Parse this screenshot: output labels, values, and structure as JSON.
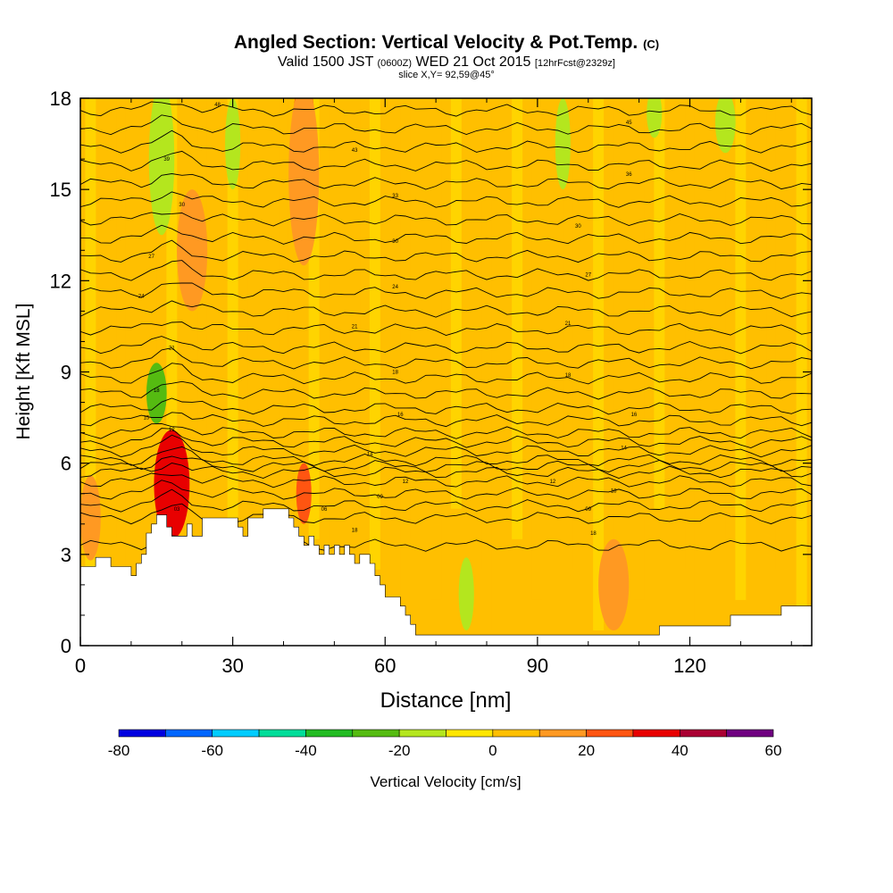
{
  "chart_data": {
    "type": "heatmap",
    "title": "Angled Section: Vertical Velocity & Pot.Temp.",
    "title_suffix": "(C)",
    "subtitle": {
      "valid": "Valid 1500 JST",
      "zulu": "(0600Z)",
      "date": "WED 21 Oct 2015",
      "forecast": "[12hrFcst@2329z]"
    },
    "slice_label": "slice X,Y= 92,59@45°",
    "xlabel": "Distance [nm]",
    "ylabel": "Height [Kft MSL]",
    "xlim": [
      0,
      144
    ],
    "ylim": [
      0,
      18
    ],
    "x_ticks": [
      "0",
      "30",
      "60",
      "90",
      "120"
    ],
    "x_tick_values": [
      0,
      30,
      60,
      90,
      120
    ],
    "y_ticks": [
      "0",
      "3",
      "6",
      "9",
      "12",
      "15",
      "18"
    ],
    "y_tick_values": [
      0,
      3,
      6,
      9,
      12,
      15,
      18
    ],
    "colorbar": {
      "label": "Vertical Velocity [cm/s]",
      "tick_labels": [
        "-80",
        "-60",
        "-40",
        "-20",
        "0",
        "20",
        "40",
        "60"
      ],
      "tick_values": [
        -80,
        -60,
        -40,
        -20,
        0,
        20,
        40,
        60
      ],
      "bins": [
        -80,
        -70,
        -60,
        -50,
        -40,
        -30,
        -20,
        -10,
        0,
        10,
        20,
        30,
        40,
        50,
        60
      ],
      "colors": [
        "#0000e0",
        "#0066ff",
        "#00ccff",
        "#00dd99",
        "#22bb22",
        "#55bb11",
        "#b4e61e",
        "#ffe600",
        "#ffbf00",
        "#ff9922",
        "#ff5511",
        "#e80000",
        "#aa0033",
        "#6f0080"
      ]
    },
    "background_value_cms": 0,
    "terrain_kft": [
      [
        0,
        2.6
      ],
      [
        3,
        2.6
      ],
      [
        3,
        2.9
      ],
      [
        6,
        2.9
      ],
      [
        6,
        2.6
      ],
      [
        10,
        2.6
      ],
      [
        10,
        2.3
      ],
      [
        11,
        2.3
      ],
      [
        11,
        2.7
      ],
      [
        12,
        2.7
      ],
      [
        12,
        3
      ],
      [
        13,
        3
      ],
      [
        13,
        3.7
      ],
      [
        14,
        3.7
      ],
      [
        14,
        4
      ],
      [
        15,
        4
      ],
      [
        15,
        4.3
      ],
      [
        17,
        4.3
      ],
      [
        17,
        3.9
      ],
      [
        18,
        3.9
      ],
      [
        18,
        3.6
      ],
      [
        21,
        3.6
      ],
      [
        21,
        4
      ],
      [
        22,
        4
      ],
      [
        22,
        3.6
      ],
      [
        24,
        3.6
      ],
      [
        24,
        4.2
      ],
      [
        31,
        4.2
      ],
      [
        31,
        3.9
      ],
      [
        32,
        3.9
      ],
      [
        32,
        3.6
      ],
      [
        33,
        3.6
      ],
      [
        33,
        4.2
      ],
      [
        36,
        4.2
      ],
      [
        36,
        4.5
      ],
      [
        41,
        4.5
      ],
      [
        41,
        4.2
      ],
      [
        42,
        4.2
      ],
      [
        42,
        3.9
      ],
      [
        43,
        3.9
      ],
      [
        43,
        3.6
      ],
      [
        44,
        3.6
      ],
      [
        44,
        3.3
      ],
      [
        45,
        3.3
      ],
      [
        45,
        3.6
      ],
      [
        46,
        3.6
      ],
      [
        46,
        3.3
      ],
      [
        47,
        3.3
      ],
      [
        47,
        3
      ],
      [
        48,
        3
      ],
      [
        48,
        3.3
      ],
      [
        49,
        3.3
      ],
      [
        49,
        3
      ],
      [
        50,
        3
      ],
      [
        50,
        3.3
      ],
      [
        51,
        3.3
      ],
      [
        51,
        3
      ],
      [
        52,
        3
      ],
      [
        52,
        3.3
      ],
      [
        53,
        3.3
      ],
      [
        53,
        3
      ],
      [
        54,
        3
      ],
      [
        54,
        2.7
      ],
      [
        55,
        2.7
      ],
      [
        55,
        3
      ],
      [
        57,
        3
      ],
      [
        57,
        2.7
      ],
      [
        58,
        2.7
      ],
      [
        58,
        2.3
      ],
      [
        59,
        2.3
      ],
      [
        59,
        2
      ],
      [
        60,
        2
      ],
      [
        60,
        1.6
      ],
      [
        63,
        1.6
      ],
      [
        63,
        1.3
      ],
      [
        64,
        1.3
      ],
      [
        64,
        1
      ],
      [
        65,
        1
      ],
      [
        65,
        0.7
      ],
      [
        66,
        0.7
      ],
      [
        66,
        0.35
      ],
      [
        114,
        0.35
      ],
      [
        114,
        0.65
      ],
      [
        122,
        0.65
      ],
      [
        122,
        0.65
      ],
      [
        128,
        0.65
      ],
      [
        128,
        1
      ],
      [
        138,
        1
      ],
      [
        138,
        1.3
      ],
      [
        144,
        1.3
      ]
    ],
    "velocity_blobs": [
      {
        "x": 17,
        "x_halfwidth": 2.2,
        "y": 5.1,
        "y_halfheight": 1.2,
        "value_cms": 50
      },
      {
        "x": 18,
        "x_halfwidth": 3.5,
        "y": 5.3,
        "y_halfheight": 1.8,
        "value_cms": 35
      },
      {
        "x": 16,
        "x_halfwidth": 2,
        "y": 16.2,
        "y_halfheight": 1.8,
        "value_cms": -35
      },
      {
        "x": 16,
        "x_halfwidth": 2.5,
        "y": 16,
        "y_halfheight": 2.5,
        "value_cms": -20
      },
      {
        "x": 15,
        "x_halfwidth": 2,
        "y": 8.3,
        "y_halfheight": 1,
        "value_cms": -25
      },
      {
        "x": 44,
        "x_halfwidth": 2.2,
        "y": 17,
        "y_halfheight": 1.6,
        "value_cms": 30
      },
      {
        "x": 44,
        "x_halfwidth": 3,
        "y": 15.5,
        "y_halfheight": 3,
        "value_cms": 15
      },
      {
        "x": 30,
        "x_halfwidth": 1.5,
        "y": 16.5,
        "y_halfheight": 1.5,
        "value_cms": -20
      },
      {
        "x": 113,
        "x_halfwidth": 1.5,
        "y": 17.5,
        "y_halfheight": 0.8,
        "value_cms": -15
      },
      {
        "x": 127,
        "x_halfwidth": 2,
        "y": 17.2,
        "y_halfheight": 1,
        "value_cms": -12
      },
      {
        "x": 95,
        "x_halfwidth": 1.5,
        "y": 16.5,
        "y_halfheight": 1.5,
        "value_cms": -12
      },
      {
        "x": 76,
        "x_halfwidth": 1.5,
        "y": 1.7,
        "y_halfheight": 1.2,
        "value_cms": -12
      },
      {
        "x": 22,
        "x_halfwidth": 3,
        "y": 13,
        "y_halfheight": 2,
        "value_cms": 15
      },
      {
        "x": 44,
        "x_halfwidth": 1.5,
        "y": 5,
        "y_halfheight": 1,
        "value_cms": 25
      },
      {
        "x": 2,
        "x_halfwidth": 2,
        "y": 4.2,
        "y_halfheight": 1.4,
        "value_cms": 15
      },
      {
        "x": 105,
        "x_halfwidth": 3,
        "y": 2,
        "y_halfheight": 1.5,
        "value_cms": 10
      }
    ],
    "theta_contours_kft": [
      3.3,
      4.2,
      4.6,
      5.0,
      5.4,
      5.7,
      5.9,
      6.1,
      6.4,
      6.7,
      7.0,
      7.4,
      7.8,
      8.3,
      8.8,
      9.3,
      9.8,
      10.4,
      11.0,
      11.6,
      12.2,
      12.8,
      13.4,
      14.0,
      14.6,
      15.2,
      15.8,
      16.4,
      17.0,
      17.6
    ],
    "contour_labels": [
      {
        "x": 27,
        "y": 17.8,
        "text": "48"
      },
      {
        "x": 108,
        "y": 17.2,
        "text": "45"
      },
      {
        "x": 54,
        "y": 16.3,
        "text": "43"
      },
      {
        "x": 17,
        "y": 16,
        "text": "39"
      },
      {
        "x": 108,
        "y": 15.5,
        "text": "36"
      },
      {
        "x": 62,
        "y": 14.8,
        "text": "33"
      },
      {
        "x": 20,
        "y": 14.5,
        "text": "30"
      },
      {
        "x": 98,
        "y": 13.8,
        "text": "30"
      },
      {
        "x": 62,
        "y": 13.3,
        "text": "30"
      },
      {
        "x": 14,
        "y": 12.8,
        "text": "27"
      },
      {
        "x": 100,
        "y": 12.2,
        "text": "27"
      },
      {
        "x": 62,
        "y": 11.8,
        "text": "24"
      },
      {
        "x": 12,
        "y": 11.5,
        "text": "24"
      },
      {
        "x": 54,
        "y": 10.5,
        "text": "21"
      },
      {
        "x": 96,
        "y": 10.6,
        "text": "21"
      },
      {
        "x": 18,
        "y": 9.8,
        "text": "21"
      },
      {
        "x": 62,
        "y": 9.0,
        "text": "18"
      },
      {
        "x": 96,
        "y": 8.9,
        "text": "18"
      },
      {
        "x": 15,
        "y": 8.4,
        "text": "18"
      },
      {
        "x": 63,
        "y": 7.6,
        "text": "16"
      },
      {
        "x": 109,
        "y": 7.6,
        "text": "16"
      },
      {
        "x": 13,
        "y": 7.5,
        "text": "15"
      },
      {
        "x": 18,
        "y": 7.1,
        "text": "12"
      },
      {
        "x": 57,
        "y": 6.3,
        "text": "14"
      },
      {
        "x": 107,
        "y": 6.5,
        "text": "14"
      },
      {
        "x": 64,
        "y": 5.4,
        "text": "12"
      },
      {
        "x": 93,
        "y": 5.4,
        "text": "12"
      },
      {
        "x": 105,
        "y": 5.1,
        "text": "18"
      },
      {
        "x": 59,
        "y": 4.9,
        "text": "09"
      },
      {
        "x": 100,
        "y": 4.5,
        "text": "09"
      },
      {
        "x": 48,
        "y": 4.5,
        "text": "06"
      },
      {
        "x": 19,
        "y": 4.5,
        "text": "03"
      },
      {
        "x": 54,
        "y": 3.8,
        "text": "18"
      },
      {
        "x": 101,
        "y": 3.7,
        "text": "18"
      }
    ]
  }
}
